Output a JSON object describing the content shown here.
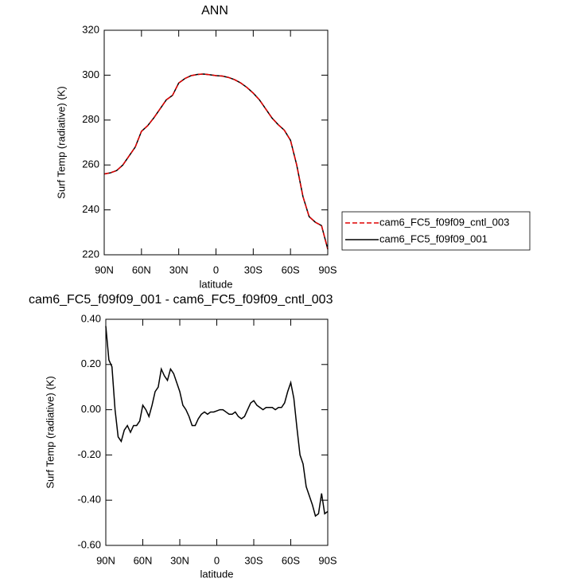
{
  "chart_data": [
    {
      "type": "line",
      "title": "ANN",
      "y_label": "Surf Temp (radiative) (K)",
      "x_label": "latitude",
      "x": [
        90,
        85,
        80,
        75,
        70,
        65,
        60,
        55,
        50,
        45,
        40,
        35,
        30,
        25,
        20,
        15,
        10,
        5,
        0,
        -5,
        -10,
        -15,
        -20,
        -25,
        -30,
        -35,
        -40,
        -45,
        -50,
        -55,
        -60,
        -65,
        -70,
        -75,
        -80,
        -85,
        -90
      ],
      "series": [
        {
          "name": "cam6_FC5_f09f09_cntl_003",
          "color": "#e00000",
          "dashed": true,
          "values": [
            256,
            256.5,
            257.5,
            260,
            264,
            268,
            275,
            277.5,
            281,
            285,
            289,
            291,
            296.5,
            298.5,
            299.8,
            300.3,
            300.5,
            300.2,
            299.8,
            299.6,
            299,
            298,
            296.5,
            294.5,
            292,
            289,
            285,
            281,
            278,
            275.5,
            271,
            260,
            246,
            237,
            234.5,
            233,
            222.5
          ]
        },
        {
          "name": "cam6_FC5_f09f09_001",
          "color": "#000000",
          "dashed": false,
          "values": [
            256,
            256.5,
            257.5,
            260,
            264,
            268,
            275,
            277.5,
            281,
            285,
            289,
            291,
            296.5,
            298.5,
            299.8,
            300.3,
            300.5,
            300.2,
            299.8,
            299.6,
            299,
            298,
            296.5,
            294.5,
            292,
            289,
            285,
            281,
            278,
            275.5,
            271,
            260,
            246,
            237,
            234.5,
            233,
            222.5
          ]
        }
      ],
      "xlim": [
        90,
        -90
      ],
      "xticks": [
        {
          "value": 90,
          "label": "90N"
        },
        {
          "value": 60,
          "label": "60N"
        },
        {
          "value": 30,
          "label": "30N"
        },
        0,
        {
          "value": -30,
          "label": "30S"
        },
        {
          "value": -60,
          "label": "60S"
        },
        {
          "value": -90,
          "label": "90S"
        }
      ],
      "ylim": [
        220,
        320
      ],
      "yticks": [
        220,
        240,
        260,
        280,
        300,
        320
      ],
      "legend": "right"
    },
    {
      "type": "line",
      "title": "cam6_FC5_f09f09_001 - cam6_FC5_f09f09_cntl_003",
      "y_label": "Surf Temp (radiative) (K)",
      "x_label": "latitude",
      "x": [
        90,
        87.5,
        85,
        82.5,
        80,
        77.5,
        75,
        72.5,
        70,
        67.5,
        65,
        62.5,
        60,
        57.5,
        55,
        52.5,
        50,
        47.5,
        45,
        42.5,
        40,
        37.5,
        35,
        32.5,
        30,
        27.5,
        25,
        22.5,
        20,
        17.5,
        15,
        12.5,
        10,
        7.5,
        5,
        2.5,
        0,
        -2.5,
        -5,
        -7.5,
        -10,
        -12.5,
        -15,
        -17.5,
        -20,
        -22.5,
        -25,
        -27.5,
        -30,
        -32.5,
        -35,
        -37.5,
        -40,
        -42.5,
        -45,
        -47.5,
        -50,
        -52.5,
        -55,
        -57.5,
        -60,
        -62.5,
        -65,
        -67.5,
        -70,
        -72.5,
        -75,
        -77.5,
        -80,
        -82.5,
        -85,
        -87.5,
        -90
      ],
      "values": [
        0.37,
        0.22,
        0.19,
        0.0,
        -0.12,
        -0.14,
        -0.09,
        -0.07,
        -0.1,
        -0.07,
        -0.07,
        -0.05,
        0.02,
        0.0,
        -0.03,
        0.02,
        0.08,
        0.1,
        0.18,
        0.15,
        0.13,
        0.18,
        0.16,
        0.12,
        0.08,
        0.02,
        0.0,
        -0.03,
        -0.07,
        -0.07,
        -0.04,
        -0.02,
        -0.01,
        -0.02,
        -0.01,
        -0.01,
        -0.005,
        0.0,
        0.0,
        -0.01,
        -0.02,
        -0.02,
        -0.01,
        -0.03,
        -0.04,
        -0.03,
        0.0,
        0.03,
        0.04,
        0.02,
        0.01,
        0.0,
        0.01,
        0.01,
        0.01,
        0.0,
        0.01,
        0.01,
        0.03,
        0.08,
        0.12,
        0.05,
        -0.08,
        -0.2,
        -0.24,
        -0.34,
        -0.38,
        -0.42,
        -0.47,
        -0.46,
        -0.37,
        -0.46,
        -0.45
      ],
      "color": "#000000",
      "xlim": [
        90,
        -90
      ],
      "xticks": [
        {
          "value": 90,
          "label": "90N"
        },
        {
          "value": 60,
          "label": "60N"
        },
        {
          "value": 30,
          "label": "30N"
        },
        0,
        {
          "value": -30,
          "label": "30S"
        },
        {
          "value": -60,
          "label": "60S"
        },
        {
          "value": -90,
          "label": "90S"
        }
      ],
      "ylim": [
        -0.6,
        0.4
      ],
      "yticks": [
        {
          "value": -0.6,
          "label": "-0.60"
        },
        {
          "value": -0.4,
          "label": "-0.40"
        },
        {
          "value": -0.2,
          "label": "-0.20"
        },
        {
          "value": 0,
          "label": "0.00"
        },
        {
          "value": 0.2,
          "label": "0.20"
        },
        {
          "value": 0.4,
          "label": "0.40"
        }
      ]
    }
  ]
}
